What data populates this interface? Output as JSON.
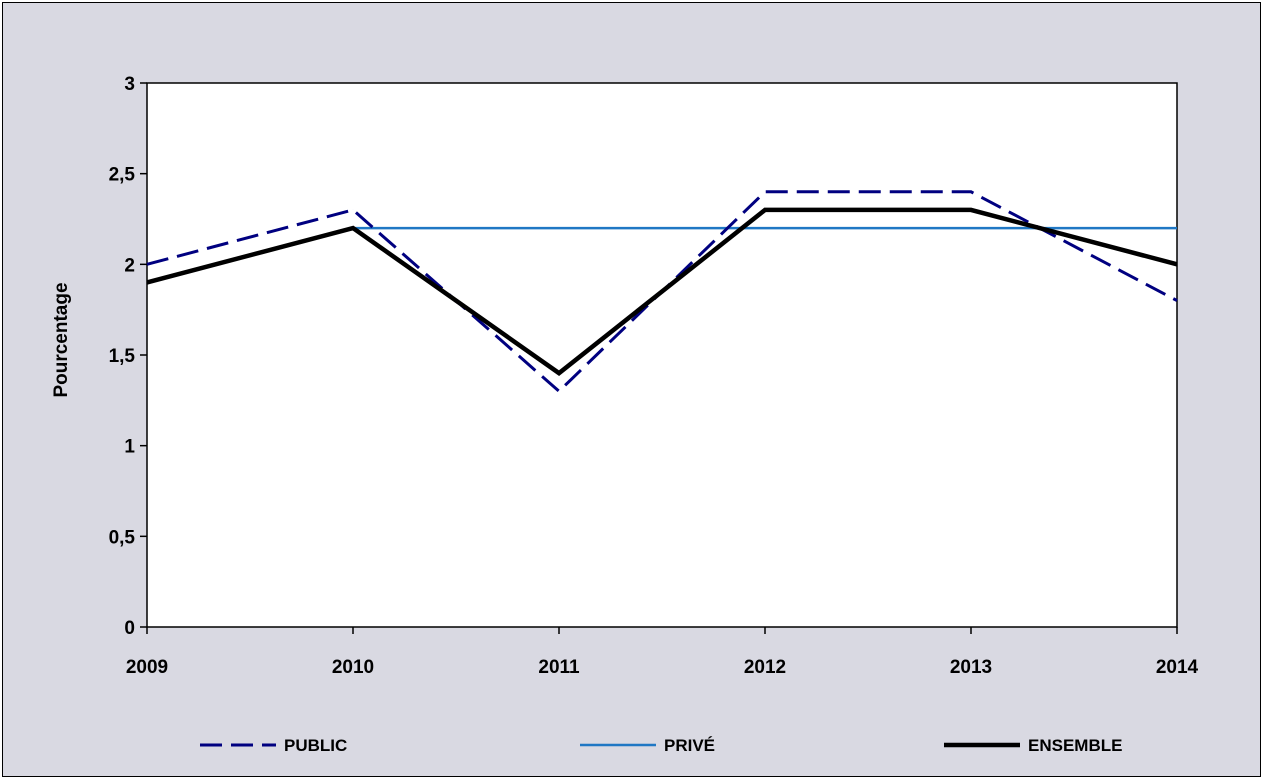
{
  "chart_data": {
    "type": "line",
    "title": "",
    "xlabel": "",
    "ylabel": "Pourcentage",
    "x": [
      "2009",
      "2010",
      "2011",
      "2012",
      "2013",
      "2014"
    ],
    "ylim": [
      0,
      3
    ],
    "yticks": [
      "0",
      "0,5",
      "1",
      "1,5",
      "2",
      "2,5",
      "3"
    ],
    "grid": false,
    "legend_position": "bottom",
    "series": [
      {
        "name": "PUBLIC",
        "values": [
          2.0,
          2.3,
          1.3,
          2.4,
          2.4,
          1.8
        ],
        "color": "#000080",
        "style": "dashed"
      },
      {
        "name": "PRIVÉ",
        "values": [
          null,
          2.2,
          2.2,
          2.2,
          2.2,
          2.2
        ],
        "color": "#1f77c4",
        "style": "solid"
      },
      {
        "name": "ENSEMBLE",
        "values": [
          1.9,
          2.2,
          1.4,
          2.3,
          2.3,
          2.0
        ],
        "color": "#000000",
        "style": "solid-thick"
      }
    ]
  }
}
